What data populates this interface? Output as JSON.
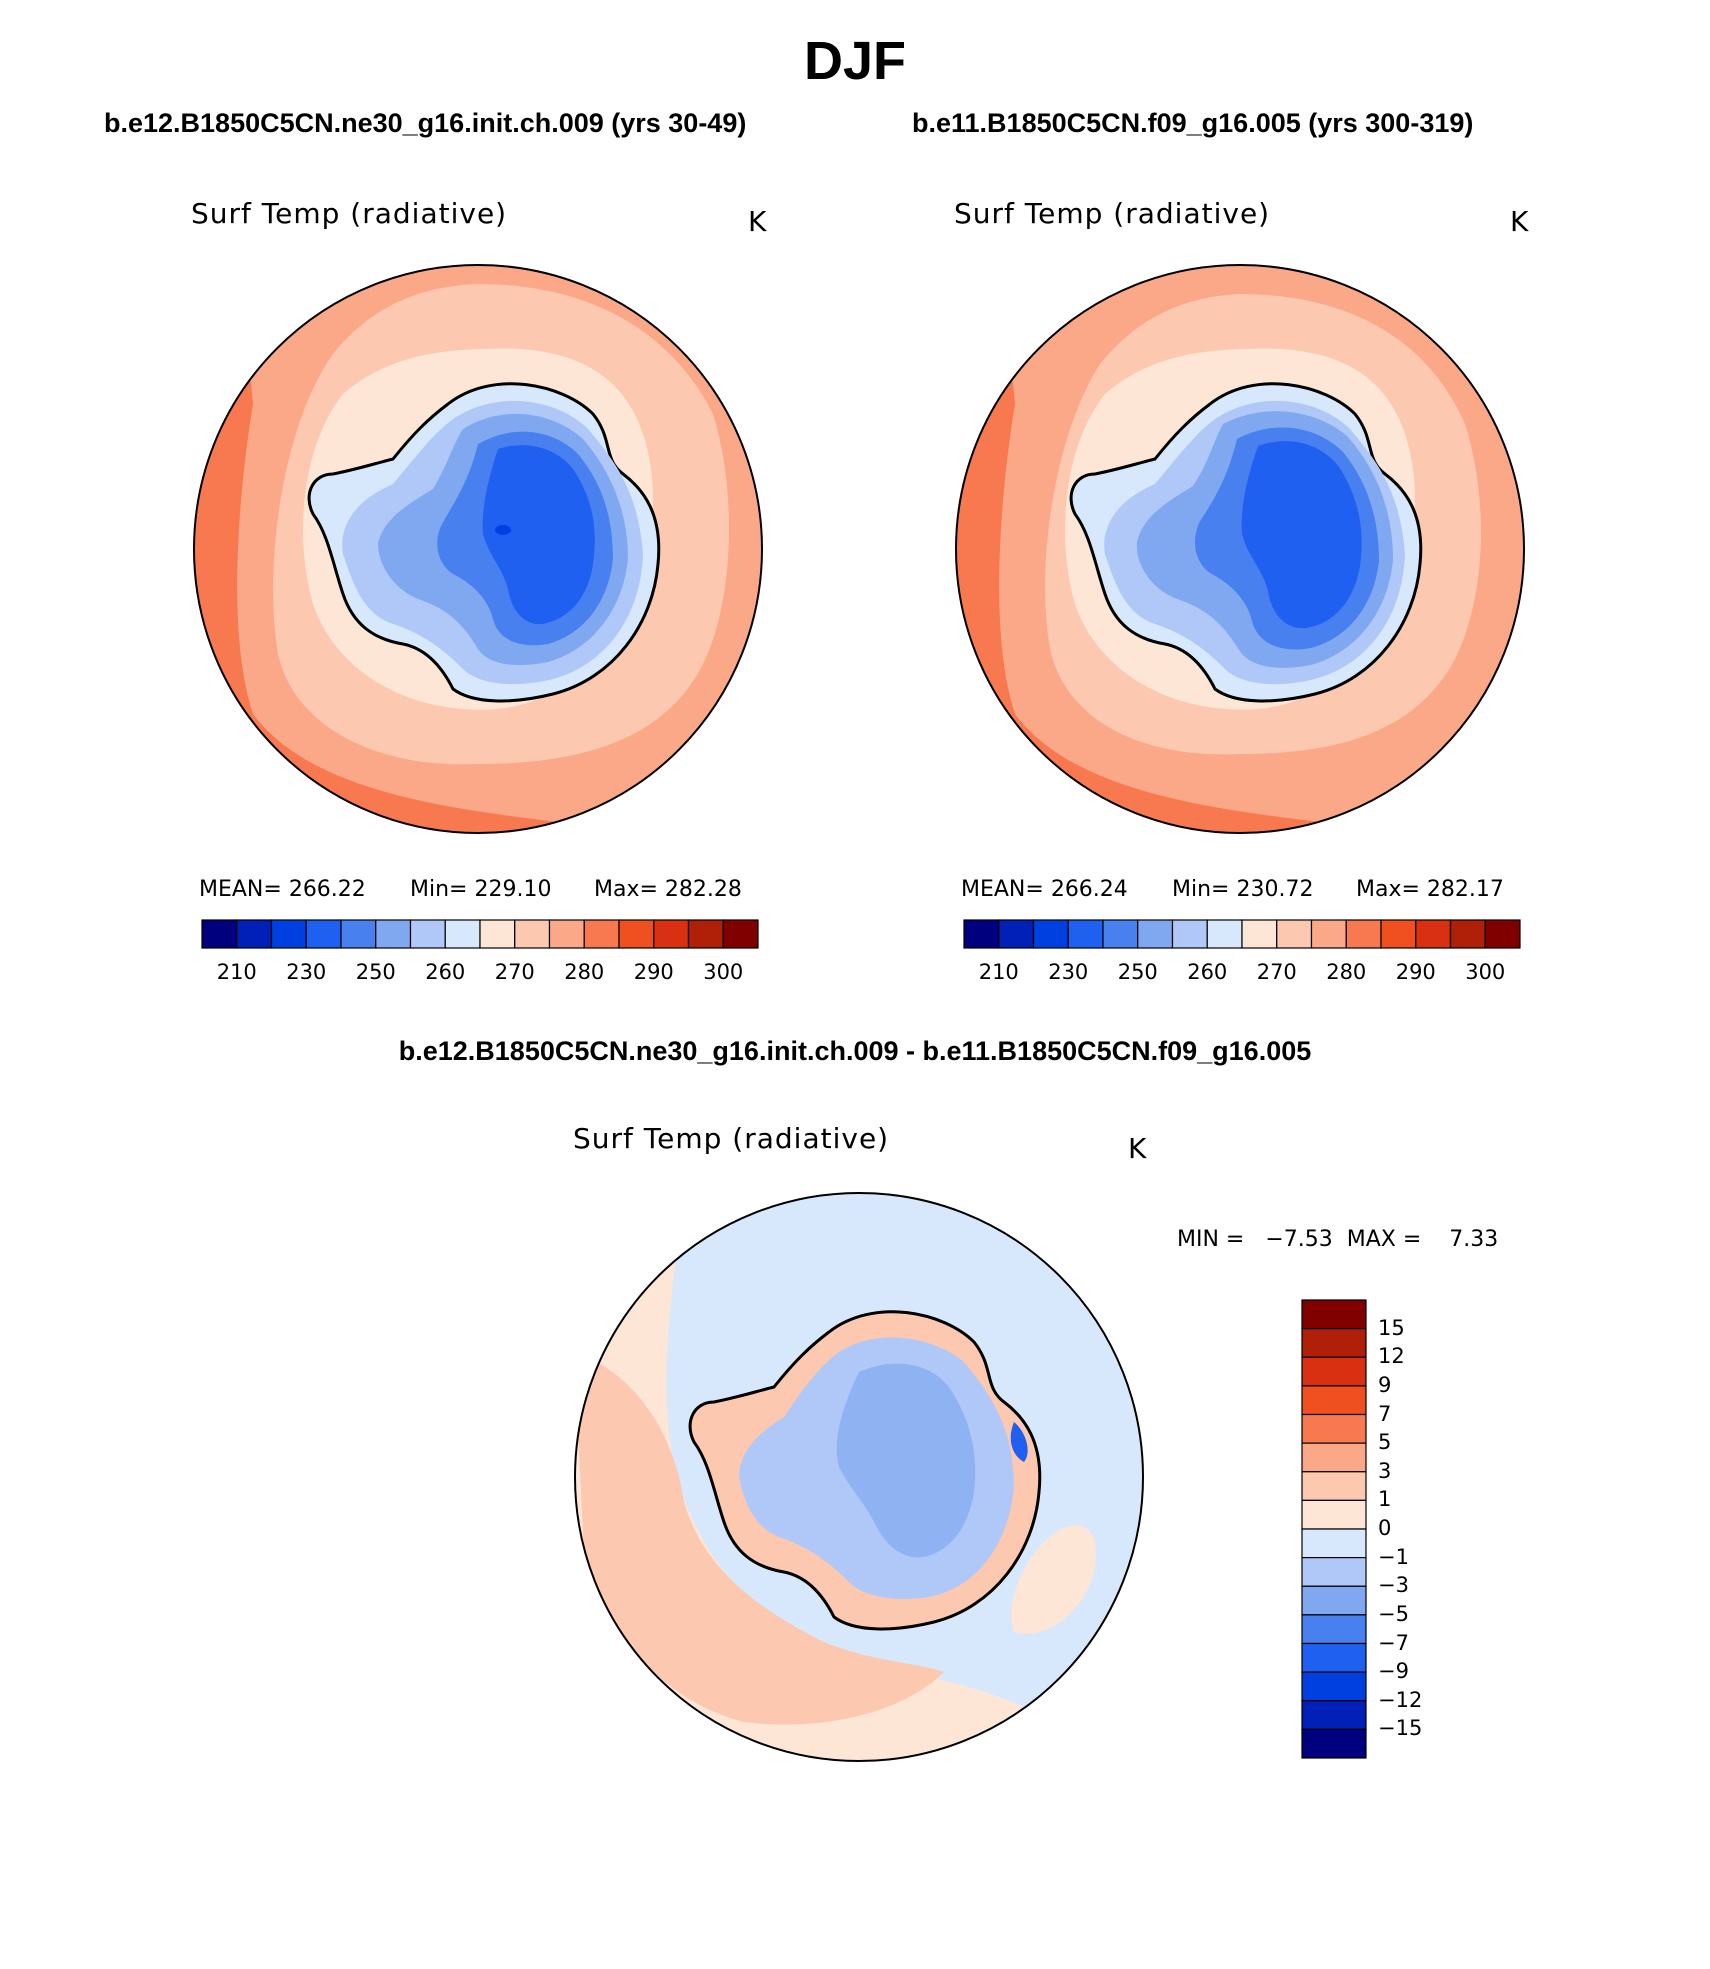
{
  "figure": {
    "season": "DJF",
    "diff_title": "b.e12.B1850C5CN.ne30_g16.init.ch.009 - b.e11.B1850C5CN.f09_g16.005"
  },
  "panels": [
    {
      "case_title": "b.e12.B1850C5CN.ne30_g16.init.ch.009 (yrs 30-49)",
      "variable": "Surf Temp (radiative)",
      "units": "K",
      "stats_mean": "MEAN= 266.22",
      "stats_min": "Min= 229.10",
      "stats_max": "Max= 282.28"
    },
    {
      "case_title": "b.e11.B1850C5CN.f09_g16.005 (yrs 300-319)",
      "variable": "Surf Temp (radiative)",
      "units": "K",
      "stats_mean": "MEAN= 266.24",
      "stats_min": "Min= 230.72",
      "stats_max": "Max= 282.17"
    },
    {
      "variable": "Surf Temp (radiative)",
      "units": "K",
      "stats": "MIN =   −7.53  MAX =    7.33"
    }
  ],
  "colorbar_abs": {
    "labels": [
      "210",
      "230",
      "250",
      "260",
      "270",
      "280",
      "290",
      "300"
    ],
    "colors": [
      "#00007f",
      "#0020b8",
      "#0040e0",
      "#2060f0",
      "#4880f0",
      "#80a8f0",
      "#b0c8f8",
      "#d8e8fc",
      "#fde6d6",
      "#fcc8b0",
      "#faa888",
      "#f87850",
      "#f05020",
      "#d83010",
      "#b02008",
      "#800000"
    ]
  },
  "colorbar_diff": {
    "labels": [
      "15",
      "12",
      "9",
      "7",
      "5",
      "3",
      "1",
      "0",
      "−1",
      "−3",
      "−5",
      "−7",
      "−9",
      "−12",
      "−15"
    ],
    "colors": [
      "#800000",
      "#b02008",
      "#d83010",
      "#f05020",
      "#f87850",
      "#faa888",
      "#fcc8b0",
      "#fde6d6",
      "#d8e8fc",
      "#b0c8f8",
      "#80a8f0",
      "#4880f0",
      "#2060f0",
      "#0040e0",
      "#0020b8",
      "#00007f"
    ]
  }
}
